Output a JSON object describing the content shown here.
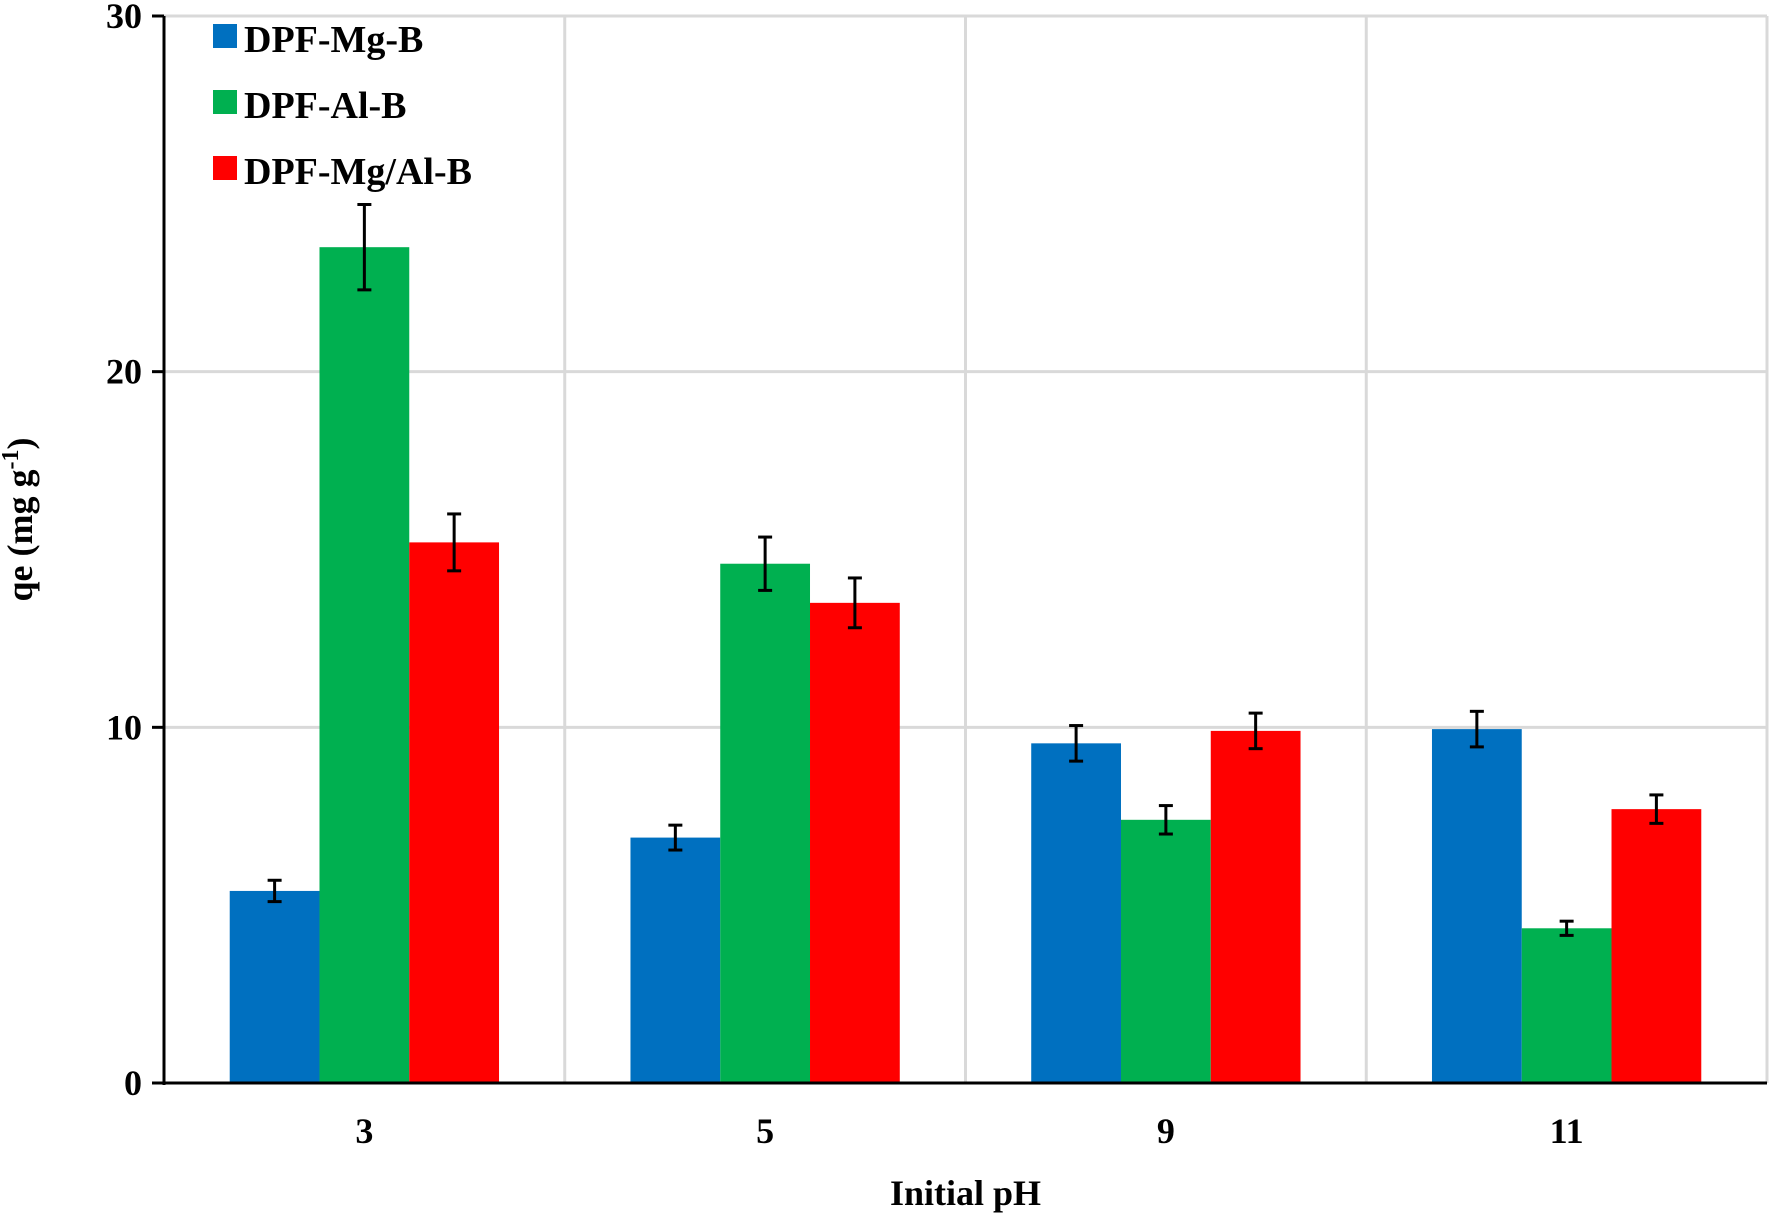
{
  "chart_data": {
    "type": "bar",
    "title": "",
    "xlabel": "Initial pH",
    "ylabel_main": "qe (mg g",
    "ylabel_sup": "-1",
    "ylabel_close": ")",
    "categories": [
      "3",
      "5",
      "9",
      "11"
    ],
    "ylim": [
      0,
      30
    ],
    "yticks": [
      0,
      10,
      20,
      30
    ],
    "grid": true,
    "legend_position": "top-left",
    "series": [
      {
        "name": "DPF-Mg-B",
        "color": "#0070C0",
        "values": [
          5.4,
          6.9,
          9.55,
          9.95
        ],
        "errors": [
          0.3,
          0.35,
          0.5,
          0.5
        ]
      },
      {
        "name": "DPF-Al-B",
        "color": "#00B050",
        "values": [
          23.5,
          14.6,
          7.4,
          4.35
        ],
        "errors": [
          1.2,
          0.75,
          0.4,
          0.2
        ]
      },
      {
        "name": "DPF-Mg/Al-B",
        "color": "#FF0000",
        "values": [
          15.2,
          13.5,
          9.9,
          7.7
        ],
        "errors": [
          0.8,
          0.7,
          0.5,
          0.4
        ]
      }
    ]
  }
}
